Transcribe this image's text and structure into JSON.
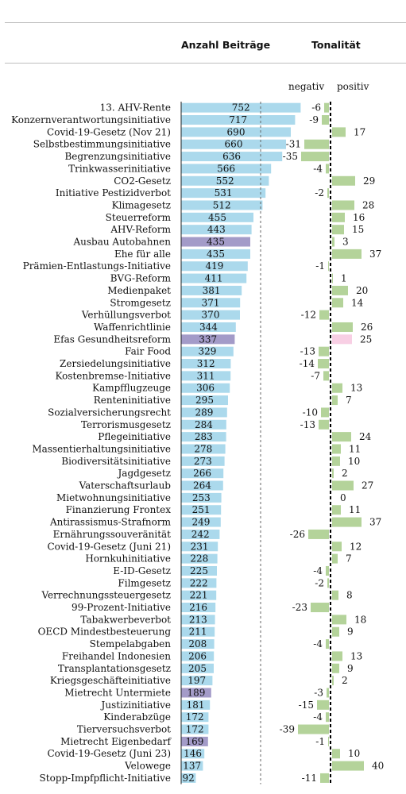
{
  "headers": {
    "count": "Anzahl Beiträge",
    "tone": "Tonalität",
    "negative": "negativ",
    "positive": "positiv"
  },
  "colors": {
    "bar": "#abd9ec",
    "highlight": "#a39bc8",
    "positive": "#b4d39a",
    "negative": "#b4d39a",
    "highlight_positive": "#f8cfe4"
  },
  "chart_data": {
    "type": "bar",
    "categories": [
      "13. AHV-Rente",
      "Konzernverantwortungsinitiative",
      "Covid-19-Gesetz (Nov 21)",
      "Selbstbestimmungsinitiative",
      "Begrenzungsinitiative",
      "Trinkwasserinitiative",
      "CO2-Gesetz",
      "Initiative Pestizidverbot",
      "Klimagesetz",
      "Steuerreform",
      "AHV-Reform",
      "Ausbau Autobahnen",
      "Ehe für alle",
      "Prämien-Entlastungs-Initiative",
      "BVG-Reform",
      "Medienpaket",
      "Stromgesetz",
      "Verhüllungsverbot",
      "Waffenrichtlinie",
      "Efas Gesundheitsreform",
      "Fair Food",
      "Zersiedelungsinitiative",
      "Kostenbremse-Initiative",
      "Kampfflugzeuge",
      "Renteninitiative",
      "Sozialversicherungsrecht",
      "Terrorismusgesetz",
      "Pflegeinitiative",
      "Massentierhaltungsinitiative",
      "Biodiversitätsinitiative",
      "Jagdgesetz",
      "Vaterschaftsurlaub",
      "Mietwohnungsinitiative",
      "Finanzierung Frontex",
      "Antirassismus-Strafnorm",
      "Ernährungssouveränität",
      "Covid-19-Gesetz (Juni 21)",
      "Hornkuhinitiative",
      "E-ID-Gesetz",
      "Filmgesetz",
      "Verrechnungssteuergesetz",
      "99-Prozent-Initiative",
      "Tabakwerbeverbot",
      "OECD Mindestbesteuerung",
      "Stempelabgaben",
      "Freihandel Indonesien",
      "Transplantationsgesetz",
      "Kriegsgeschäfteinitiative",
      "Mietrecht Untermiete",
      "Justizinitiative",
      "Kinderabzüge",
      "Tierversuchsverbot",
      "Mietrecht Eigenbedarf",
      "Covid-19-Gesetz (Juni 23)",
      "Velowege",
      "Stopp-Impfpflicht-Initiative"
    ],
    "series": [
      {
        "name": "Anzahl Beiträge",
        "values": [
          752,
          717,
          690,
          660,
          636,
          566,
          552,
          531,
          512,
          455,
          443,
          435,
          435,
          419,
          411,
          381,
          371,
          370,
          344,
          337,
          329,
          312,
          311,
          306,
          295,
          289,
          284,
          283,
          278,
          273,
          266,
          264,
          253,
          251,
          249,
          242,
          231,
          228,
          225,
          222,
          221,
          216,
          213,
          211,
          208,
          206,
          205,
          197,
          189,
          181,
          172,
          172,
          169,
          146,
          137,
          92
        ]
      },
      {
        "name": "Tonalität",
        "values": [
          -6,
          -9,
          17,
          -31,
          -35,
          -4,
          29,
          -2,
          28,
          16,
          15,
          3,
          37,
          -1,
          1,
          20,
          14,
          -12,
          26,
          25,
          -13,
          -14,
          -7,
          13,
          7,
          -10,
          -13,
          24,
          11,
          10,
          2,
          27,
          0,
          11,
          37,
          -26,
          12,
          7,
          -4,
          -2,
          8,
          -23,
          18,
          9,
          -4,
          13,
          9,
          2,
          -3,
          -15,
          -4,
          -39,
          -1,
          10,
          40,
          -11
        ]
      }
    ],
    "highlighted": [
      "Ausbau Autobahnen",
      "Efas Gesundheitsreform",
      "Mietrecht Untermiete",
      "Mietrecht Eigenbedarf"
    ],
    "tone_highlighted": [
      "Efas Gesundheitsreform"
    ],
    "count_reference_line": 500,
    "tone_reference_line": 0
  }
}
